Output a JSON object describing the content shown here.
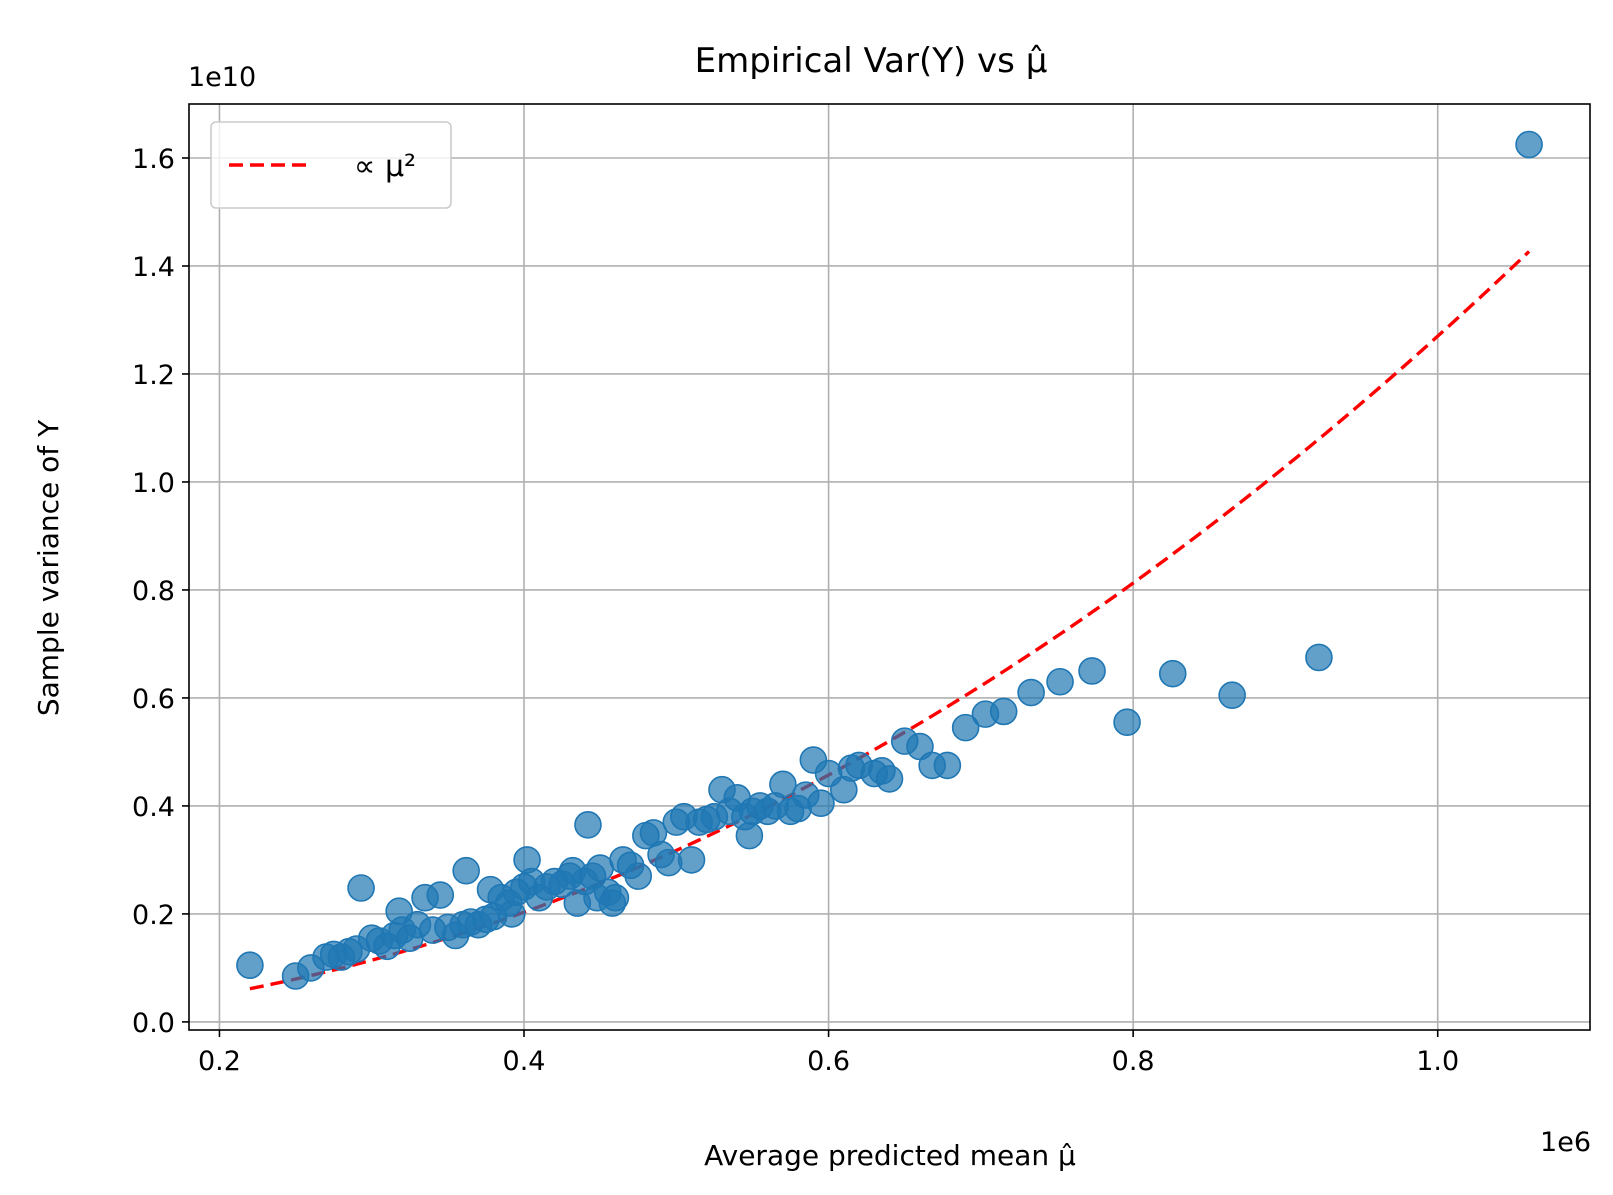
{
  "chart_data": {
    "type": "scatter",
    "title": "Empirical Var(Y) vs μ̂",
    "xlabel": "Average predicted mean μ̂",
    "ylabel": "Sample variance of Y",
    "x_offset_label": "1e6",
    "y_offset_label": "1e10",
    "xlim": [
      0.18,
      1.1
    ],
    "ylim": [
      -0.015,
      1.7
    ],
    "x_ticks": [
      {
        "value": 0.2,
        "label": "0.2"
      },
      {
        "value": 0.4,
        "label": "0.4"
      },
      {
        "value": 0.6,
        "label": "0.6"
      },
      {
        "value": 0.8,
        "label": "0.8"
      },
      {
        "value": 1.0,
        "label": "1.0"
      }
    ],
    "y_ticks": [
      {
        "value": 0.0,
        "label": "0.0"
      },
      {
        "value": 0.2,
        "label": "0.2"
      },
      {
        "value": 0.4,
        "label": "0.4"
      },
      {
        "value": 0.6,
        "label": "0.6"
      },
      {
        "value": 0.8,
        "label": "0.8"
      },
      {
        "value": 1.0,
        "label": "1.0"
      },
      {
        "value": 1.2,
        "label": "1.2"
      },
      {
        "value": 1.4,
        "label": "1.4"
      },
      {
        "value": 1.6,
        "label": "1.6"
      }
    ],
    "grid": true,
    "legend_position": "top-left",
    "series": [
      {
        "kind": "line",
        "label_text": "∝ μ²",
        "color": "#ff0000",
        "style": "dashed",
        "coefficient": 1.27,
        "x_range": [
          0.22,
          1.06
        ]
      },
      {
        "kind": "scatter",
        "color": "#1f77b4",
        "points": [
          [
            0.22,
            0.105
          ],
          [
            0.25,
            0.085
          ],
          [
            0.26,
            0.1
          ],
          [
            0.27,
            0.12
          ],
          [
            0.275,
            0.125
          ],
          [
            0.28,
            0.12
          ],
          [
            0.285,
            0.13
          ],
          [
            0.29,
            0.135
          ],
          [
            0.293,
            0.248
          ],
          [
            0.3,
            0.155
          ],
          [
            0.305,
            0.15
          ],
          [
            0.31,
            0.14
          ],
          [
            0.315,
            0.16
          ],
          [
            0.318,
            0.205
          ],
          [
            0.32,
            0.17
          ],
          [
            0.325,
            0.155
          ],
          [
            0.33,
            0.18
          ],
          [
            0.335,
            0.23
          ],
          [
            0.34,
            0.17
          ],
          [
            0.345,
            0.235
          ],
          [
            0.35,
            0.175
          ],
          [
            0.355,
            0.16
          ],
          [
            0.36,
            0.18
          ],
          [
            0.362,
            0.28
          ],
          [
            0.365,
            0.185
          ],
          [
            0.37,
            0.18
          ],
          [
            0.375,
            0.19
          ],
          [
            0.378,
            0.245
          ],
          [
            0.38,
            0.195
          ],
          [
            0.385,
            0.23
          ],
          [
            0.39,
            0.22
          ],
          [
            0.392,
            0.2
          ],
          [
            0.395,
            0.24
          ],
          [
            0.4,
            0.25
          ],
          [
            0.402,
            0.3
          ],
          [
            0.405,
            0.26
          ],
          [
            0.41,
            0.23
          ],
          [
            0.415,
            0.25
          ],
          [
            0.42,
            0.26
          ],
          [
            0.425,
            0.255
          ],
          [
            0.43,
            0.27
          ],
          [
            0.432,
            0.28
          ],
          [
            0.435,
            0.22
          ],
          [
            0.44,
            0.26
          ],
          [
            0.442,
            0.365
          ],
          [
            0.445,
            0.27
          ],
          [
            0.448,
            0.23
          ],
          [
            0.45,
            0.285
          ],
          [
            0.455,
            0.24
          ],
          [
            0.458,
            0.22
          ],
          [
            0.46,
            0.23
          ],
          [
            0.465,
            0.3
          ],
          [
            0.47,
            0.29
          ],
          [
            0.475,
            0.27
          ],
          [
            0.48,
            0.345
          ],
          [
            0.485,
            0.35
          ],
          [
            0.49,
            0.31
          ],
          [
            0.495,
            0.295
          ],
          [
            0.5,
            0.37
          ],
          [
            0.505,
            0.38
          ],
          [
            0.51,
            0.3
          ],
          [
            0.515,
            0.37
          ],
          [
            0.52,
            0.375
          ],
          [
            0.525,
            0.38
          ],
          [
            0.53,
            0.43
          ],
          [
            0.535,
            0.39
          ],
          [
            0.54,
            0.415
          ],
          [
            0.545,
            0.38
          ],
          [
            0.548,
            0.345
          ],
          [
            0.55,
            0.39
          ],
          [
            0.555,
            0.4
          ],
          [
            0.56,
            0.39
          ],
          [
            0.565,
            0.4
          ],
          [
            0.57,
            0.44
          ],
          [
            0.575,
            0.39
          ],
          [
            0.58,
            0.395
          ],
          [
            0.585,
            0.42
          ],
          [
            0.59,
            0.485
          ],
          [
            0.595,
            0.405
          ],
          [
            0.6,
            0.46
          ],
          [
            0.61,
            0.43
          ],
          [
            0.615,
            0.47
          ],
          [
            0.62,
            0.475
          ],
          [
            0.63,
            0.46
          ],
          [
            0.635,
            0.465
          ],
          [
            0.64,
            0.45
          ],
          [
            0.65,
            0.52
          ],
          [
            0.66,
            0.51
          ],
          [
            0.668,
            0.475
          ],
          [
            0.678,
            0.475
          ],
          [
            0.69,
            0.545
          ],
          [
            0.703,
            0.57
          ],
          [
            0.715,
            0.575
          ],
          [
            0.733,
            0.61
          ],
          [
            0.752,
            0.63
          ],
          [
            0.773,
            0.65
          ],
          [
            0.796,
            0.555
          ],
          [
            0.826,
            0.645
          ],
          [
            0.865,
            0.605
          ],
          [
            0.922,
            0.675
          ],
          [
            1.06,
            1.625
          ]
        ]
      }
    ]
  }
}
